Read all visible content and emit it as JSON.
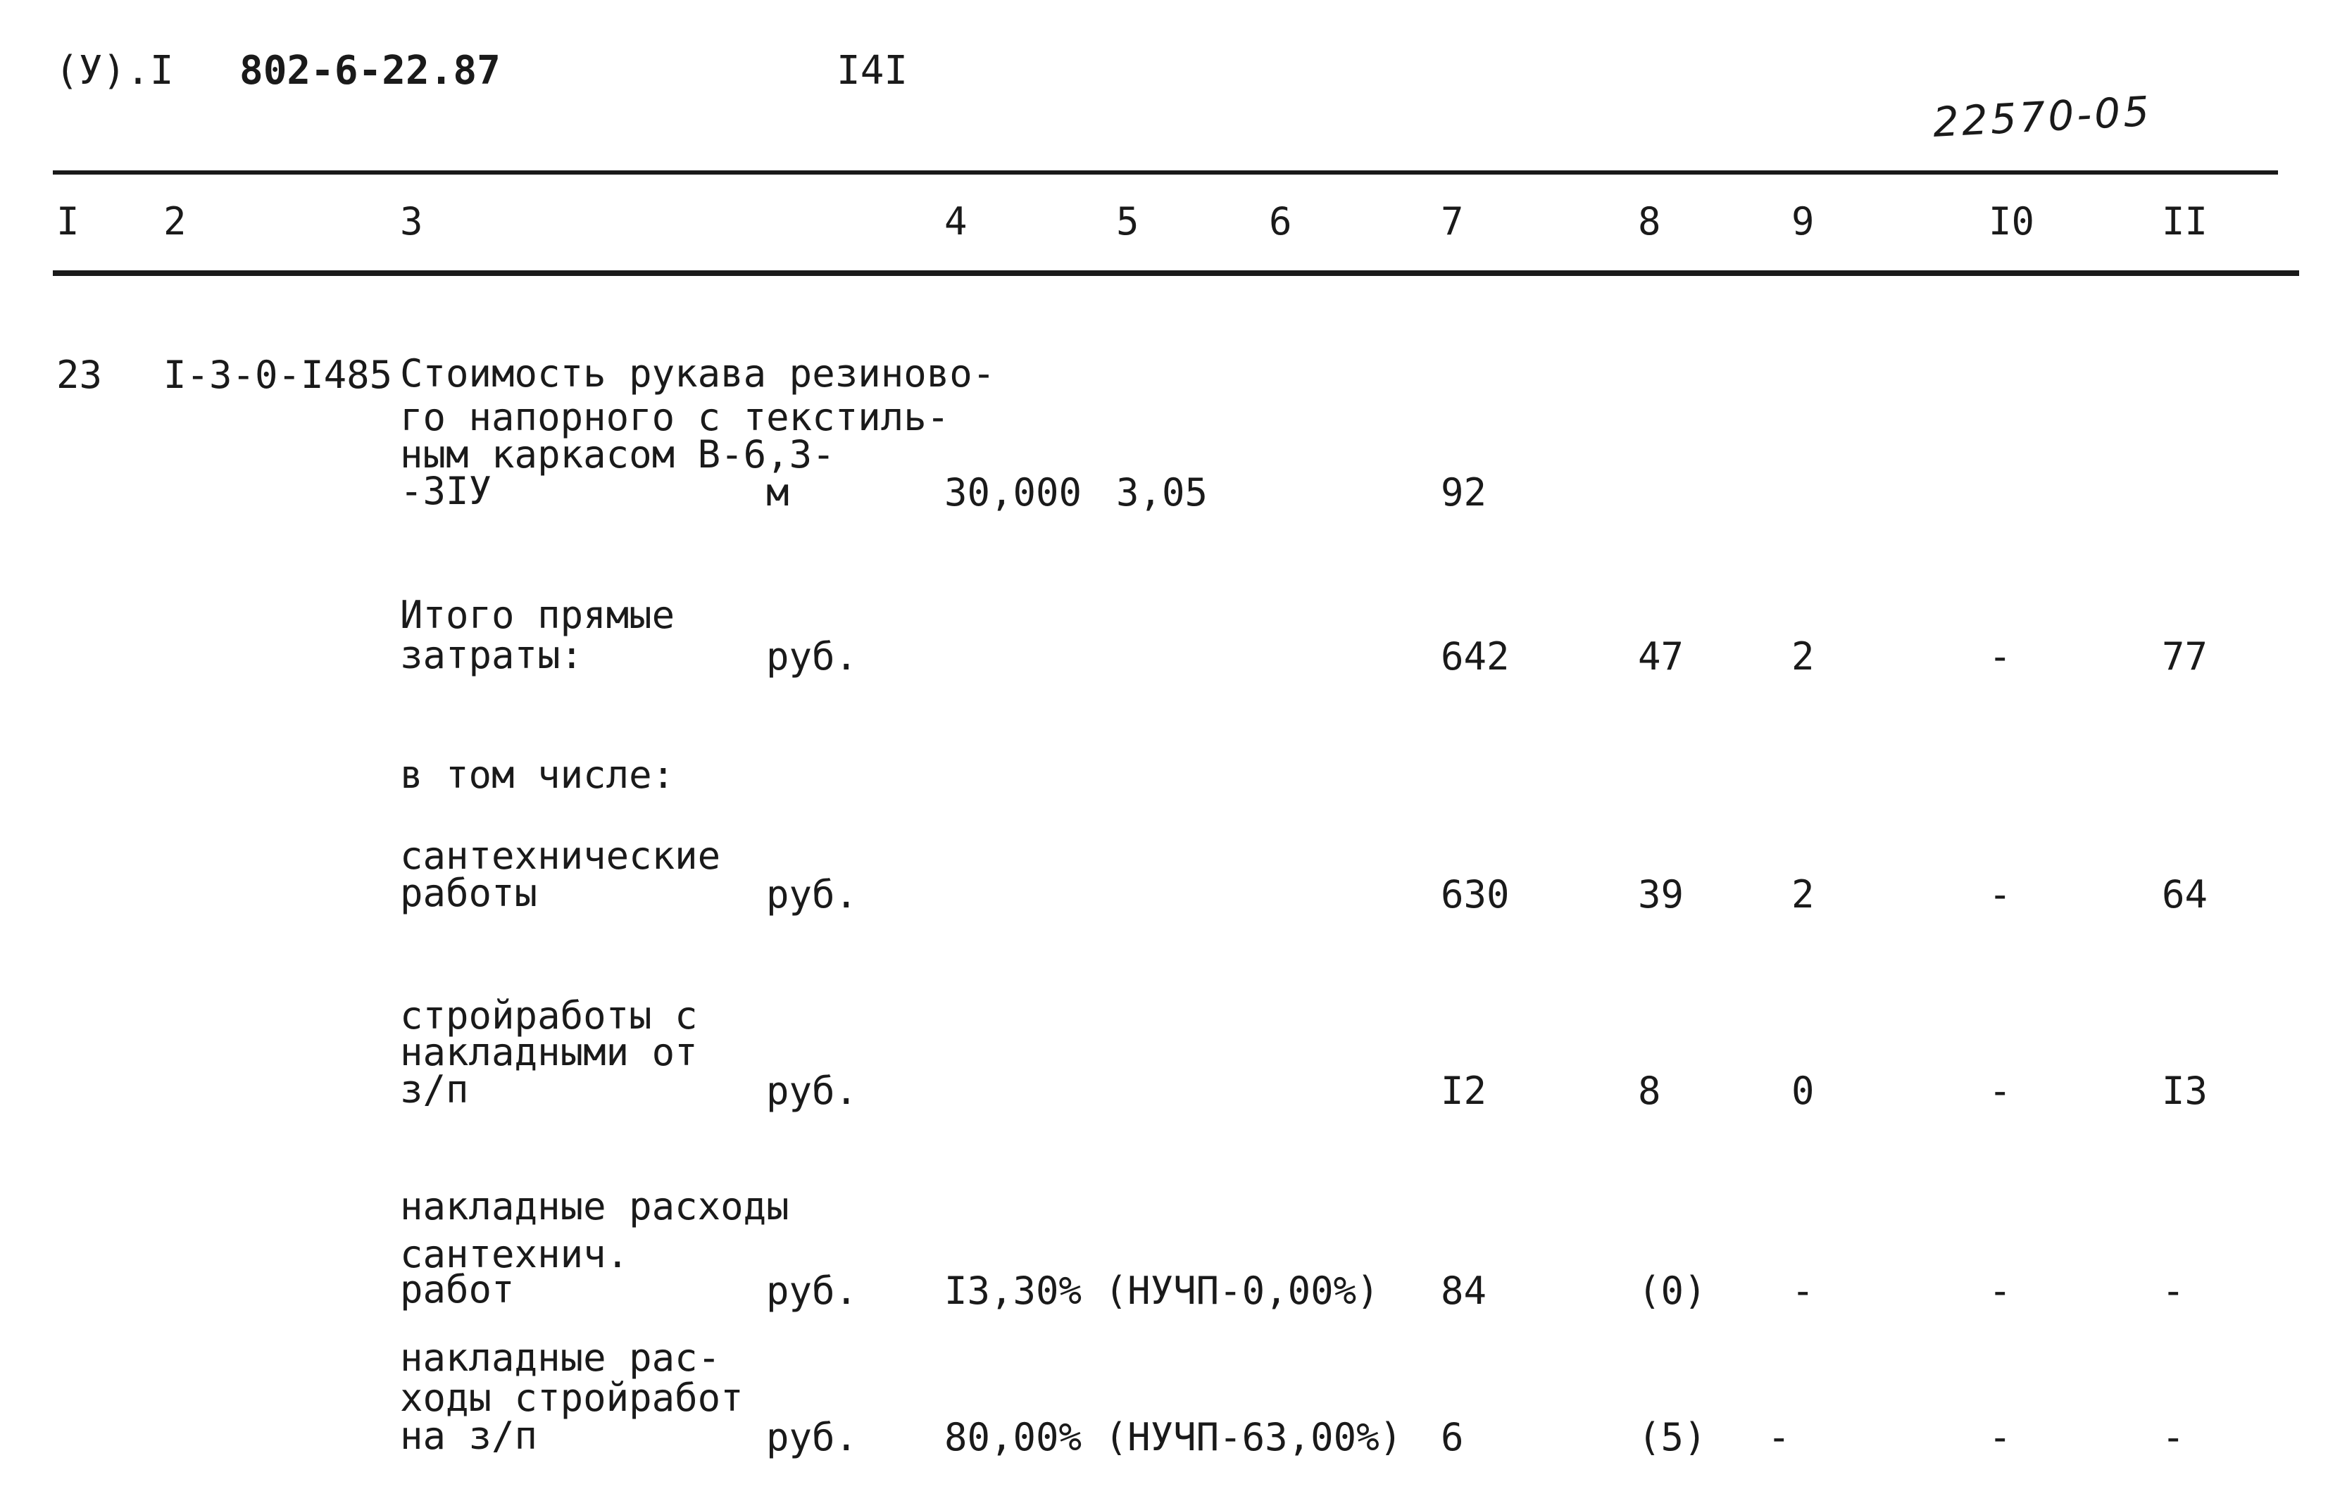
{
  "header": {
    "left_code": "(У).I",
    "doc_number": "802-6-22.87",
    "page_number": "I4I",
    "handwritten_number": "22570-05"
  },
  "columns": [
    "I",
    "2",
    "3",
    "4",
    "5",
    "6",
    "7",
    "8",
    "9",
    "I0",
    "II"
  ],
  "rows": [
    {
      "num": "23",
      "code": "I-3-0-I485",
      "desc_lines": [
        "Стоимость рукава резиново-",
        "го напорного с текстиль-",
        "ным каркасом В-6,3-",
        "-3IУ"
      ],
      "unit": "м",
      "c4": "30,000",
      "c5": "3,05",
      "c7": "92",
      "c8": "",
      "c9": "",
      "c10": "",
      "c11": ""
    },
    {
      "num": "",
      "code": "",
      "desc_lines": [
        "Итого прямые",
        "затраты:"
      ],
      "unit": "руб.",
      "c4": "",
      "c5": "",
      "c7": "642",
      "c8": "47",
      "c9": "2",
      "c10": "-",
      "c11": "77"
    },
    {
      "num": "",
      "code": "",
      "desc_lines": [
        "в том числе:"
      ],
      "unit": "",
      "c4": "",
      "c5": "",
      "c7": "",
      "c8": "",
      "c9": "",
      "c10": "",
      "c11": ""
    },
    {
      "num": "",
      "code": "",
      "desc_lines": [
        "сантехнические",
        "работы"
      ],
      "unit": "руб.",
      "c4": "",
      "c5": "",
      "c7": "630",
      "c8": "39",
      "c9": "2",
      "c10": "-",
      "c11": "64"
    },
    {
      "num": "",
      "code": "",
      "desc_lines": [
        "стройработы с",
        "накладными от",
        "з/п"
      ],
      "unit": "руб.",
      "c4": "",
      "c5": "",
      "c7": "I2",
      "c8": "8",
      "c9": "0",
      "c10": "-",
      "c11": "I3"
    },
    {
      "num": "",
      "code": "",
      "desc_lines": [
        "накладные расходы",
        "сантехнич.",
        "работ"
      ],
      "unit": "руб.",
      "c4": "I3,30% (НУЧП-0,00%)",
      "c5": "",
      "c7": "84",
      "c8": "(0)",
      "c9": "-",
      "c10": "-",
      "c11": "-"
    },
    {
      "num": "",
      "code": "",
      "desc_lines": [
        "накладные рас-",
        "ходы стройработ",
        "на з/п"
      ],
      "unit": "руб.",
      "c4": "80,00% (НУЧП-63,00%)",
      "c5": "",
      "c7": "6",
      "c8": "(5)",
      "c9": "-",
      "c10": "-",
      "c11": "-"
    }
  ]
}
